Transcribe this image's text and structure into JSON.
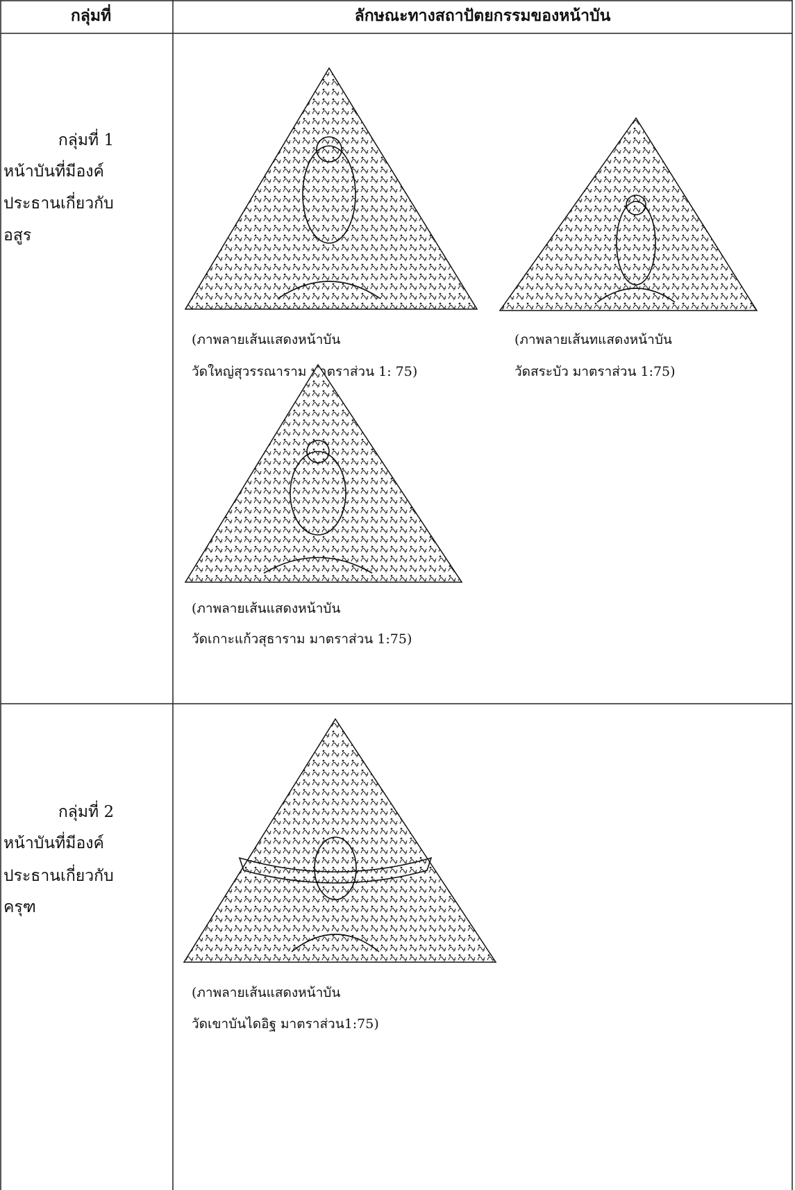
{
  "header": {
    "columns": [
      "กลุ่มที่",
      "ลักษณะทางสถาปัตยกรรมของหน้าบัน"
    ]
  },
  "table": {
    "rows": [
      {
        "group": [
          "กลุ่มที่ 1",
          "หน้าบันที่มีองค์",
          "ประธานเกี่ยวกับ",
          "อสูร"
        ],
        "figures": [
          [
            "(ภาพลายเส้นแสดงหน้าบัน",
            "วัดใหญ่สุวรรณาราม มาตราส่วน 1: 75)"
          ],
          [
            "(ภาพลายเส้นทแสดงหน้าบัน",
            "วัดสระบัว มาตราส่วน 1:75)"
          ],
          [
            "(ภาพลายเส้นแสดงหน้าบัน",
            "วัดเกาะแก้วสุธาราม มาตราส่วน 1:75)"
          ]
        ]
      },
      {
        "group": [
          "กลุ่มที่ 2",
          "หน้าบันที่มีองค์",
          "ประธานเกี่ยวกับ",
          "ครุฑ"
        ],
        "figures": [
          [
            "(ภาพลายเส้นแสดงหน้าบัน",
            "วัดเขาบันไดอิฐ มาตราส่วน1:75)"
          ]
        ]
      }
    ]
  }
}
